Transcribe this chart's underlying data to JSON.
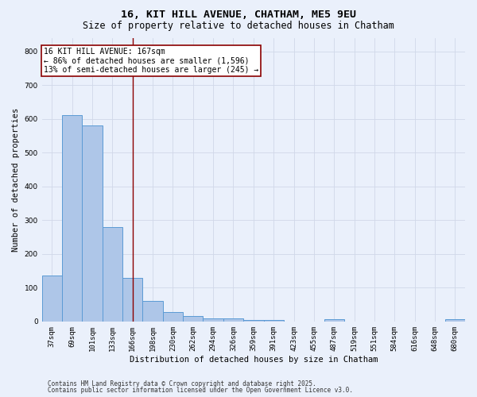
{
  "title1": "16, KIT HILL AVENUE, CHATHAM, ME5 9EU",
  "title2": "Size of property relative to detached houses in Chatham",
  "xlabel": "Distribution of detached houses by size in Chatham",
  "ylabel": "Number of detached properties",
  "categories": [
    "37sqm",
    "69sqm",
    "101sqm",
    "133sqm",
    "166sqm",
    "198sqm",
    "230sqm",
    "262sqm",
    "294sqm",
    "326sqm",
    "359sqm",
    "391sqm",
    "423sqm",
    "455sqm",
    "487sqm",
    "519sqm",
    "551sqm",
    "584sqm",
    "616sqm",
    "648sqm",
    "680sqm"
  ],
  "values": [
    135,
    610,
    580,
    280,
    130,
    60,
    28,
    15,
    8,
    8,
    5,
    5,
    0,
    0,
    7,
    0,
    0,
    0,
    0,
    0,
    6
  ],
  "bar_color": "#aec6e8",
  "bar_edge_color": "#5b9bd5",
  "vline_x_index": 4,
  "vline_color": "#8b0000",
  "annotation_text": "16 KIT HILL AVENUE: 167sqm\n← 86% of detached houses are smaller (1,596)\n13% of semi-detached houses are larger (245) →",
  "annotation_box_color": "#8b0000",
  "annotation_text_color": "#000000",
  "ylim": [
    0,
    840
  ],
  "yticks": [
    0,
    100,
    200,
    300,
    400,
    500,
    600,
    700,
    800
  ],
  "grid_color": "#d0d8e8",
  "background_color": "#eaf0fb",
  "footer1": "Contains HM Land Registry data © Crown copyright and database right 2025.",
  "footer2": "Contains public sector information licensed under the Open Government Licence v3.0.",
  "title1_fontsize": 9.5,
  "title2_fontsize": 8.5,
  "axis_label_fontsize": 7.5,
  "tick_fontsize": 6.5,
  "annotation_fontsize": 7.0,
  "footer_fontsize": 5.5
}
